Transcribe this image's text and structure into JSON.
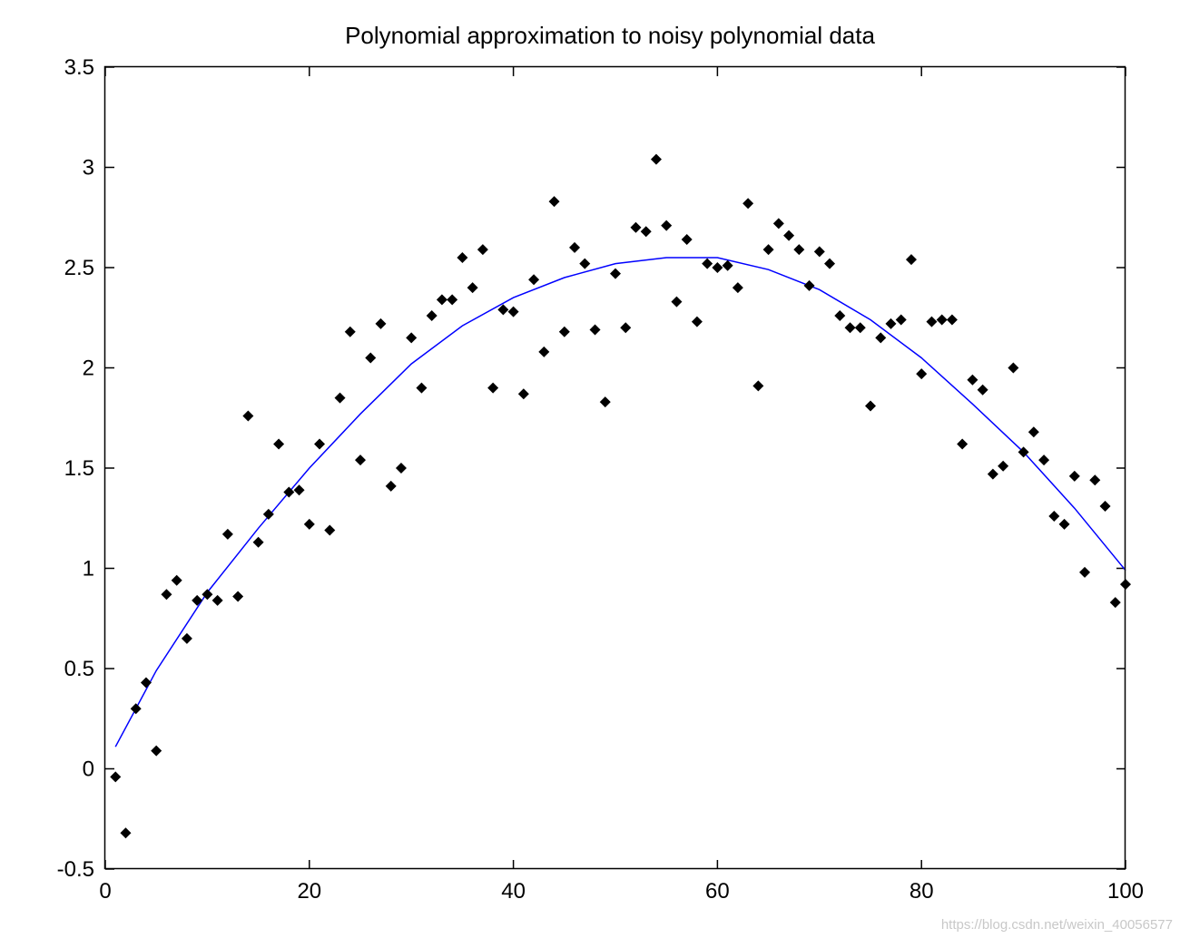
{
  "chart_data": {
    "type": "scatter",
    "title": "Polynomial approximation to noisy polynomial data",
    "xlabel": "",
    "ylabel": "",
    "xlim": [
      0,
      100
    ],
    "ylim": [
      -0.5,
      3.5
    ],
    "xticks": [
      0,
      20,
      40,
      60,
      80,
      100
    ],
    "yticks": [
      -0.5,
      0,
      0.5,
      1,
      1.5,
      2,
      2.5,
      3,
      3.5
    ],
    "grid": false,
    "series": [
      {
        "kind": "points",
        "marker": "diamond",
        "color": "#000000",
        "x": [
          1,
          2,
          3,
          4,
          5,
          6,
          7,
          8,
          9,
          10,
          11,
          12,
          13,
          14,
          15,
          16,
          17,
          18,
          19,
          20,
          21,
          22,
          23,
          24,
          25,
          26,
          27,
          28,
          29,
          30,
          31,
          32,
          33,
          34,
          35,
          36,
          37,
          38,
          39,
          40,
          41,
          42,
          43,
          44,
          45,
          46,
          47,
          48,
          49,
          50,
          51,
          52,
          53,
          54,
          55,
          56,
          57,
          58,
          59,
          60,
          61,
          62,
          63,
          64,
          65,
          66,
          67,
          68,
          69,
          70,
          71,
          72,
          73,
          74,
          75,
          76,
          77,
          78,
          79,
          80,
          81,
          82,
          83,
          84,
          85,
          86,
          87,
          88,
          89,
          90,
          91,
          92,
          93,
          94,
          95,
          96,
          97,
          98,
          99,
          100
        ],
        "y": [
          -0.04,
          -0.32,
          0.3,
          0.43,
          0.09,
          0.87,
          0.94,
          0.65,
          0.84,
          0.87,
          0.84,
          1.17,
          0.86,
          1.76,
          1.13,
          1.27,
          1.62,
          1.38,
          1.39,
          1.22,
          1.62,
          1.19,
          1.85,
          2.18,
          1.54,
          2.05,
          2.22,
          1.41,
          1.5,
          2.15,
          1.9,
          2.26,
          2.34,
          2.34,
          2.55,
          2.4,
          2.59,
          1.9,
          2.29,
          2.28,
          1.87,
          2.44,
          2.08,
          2.83,
          2.18,
          2.6,
          2.52,
          2.19,
          1.83,
          2.47,
          2.2,
          2.7,
          2.68,
          3.04,
          2.71,
          2.33,
          2.64,
          2.23,
          2.52,
          2.5,
          2.51,
          2.4,
          2.82,
          1.91,
          2.59,
          2.72,
          2.66,
          2.59,
          2.41,
          2.58,
          2.52,
          2.26,
          2.2,
          2.2,
          1.81,
          2.15,
          2.22,
          2.24,
          2.54,
          1.97,
          2.23,
          2.24,
          2.24,
          1.62,
          1.94,
          1.89,
          1.47,
          1.51,
          2.0,
          1.58,
          1.68,
          1.54,
          1.26,
          1.22,
          1.46,
          0.98,
          1.44,
          1.31,
          0.83,
          0.92
        ]
      },
      {
        "kind": "line",
        "color": "#0000ff",
        "x": [
          1,
          5,
          10,
          15,
          20,
          25,
          30,
          35,
          40,
          45,
          50,
          55,
          60,
          65,
          70,
          75,
          80,
          85,
          90,
          95,
          100
        ],
        "y": [
          0.11,
          0.49,
          0.88,
          1.2,
          1.5,
          1.77,
          2.02,
          2.21,
          2.35,
          2.45,
          2.52,
          2.55,
          2.55,
          2.49,
          2.39,
          2.24,
          2.05,
          1.82,
          1.58,
          1.3,
          0.99
        ]
      }
    ]
  },
  "watermark": "https://blog.csdn.net/weixin_40056577"
}
